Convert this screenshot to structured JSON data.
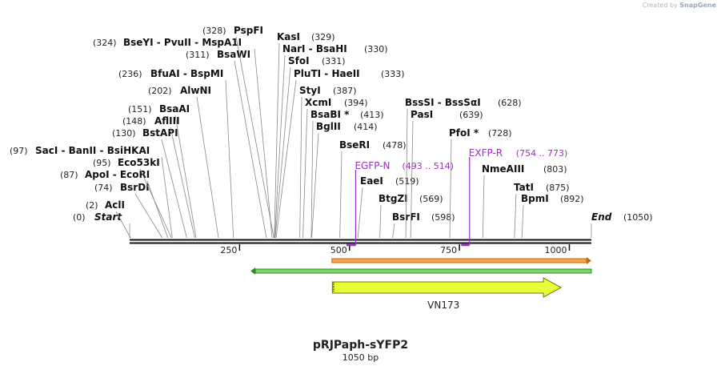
{
  "credit": {
    "prefix": "Created by",
    "brand": "SnapGene"
  },
  "plasmid": {
    "name": "pRJPaph-sYFP2",
    "size_label": "1050 bp",
    "length": 1050
  },
  "ruler_ticks": [
    {
      "pos": 250,
      "label": "250"
    },
    {
      "pos": 500,
      "label": "500"
    },
    {
      "pos": 750,
      "label": "750"
    },
    {
      "pos": 1000,
      "label": "1000"
    }
  ],
  "enzymes": [
    {
      "pos": 0,
      "pos_label": "(0)",
      "name": "Start",
      "italic": true
    },
    {
      "pos": 2,
      "pos_label": "(2)",
      "name": "AclI"
    },
    {
      "pos": 74,
      "pos_label": "(74)",
      "name": "BsrDI"
    },
    {
      "pos": 87,
      "pos_label": "(87)",
      "name": "ApoI - EcoRI"
    },
    {
      "pos": 95,
      "pos_label": "(95)",
      "name": "Eco53kI"
    },
    {
      "pos": 97,
      "pos_label": "(97)",
      "name": "SacI - BanII - BsiHKAI"
    },
    {
      "pos": 130,
      "pos_label": "(130)",
      "name": "BstAPI"
    },
    {
      "pos": 148,
      "pos_label": "(148)",
      "name": "AflIII"
    },
    {
      "pos": 151,
      "pos_label": "(151)",
      "name": "BsaAI"
    },
    {
      "pos": 202,
      "pos_label": "(202)",
      "name": "AlwNI"
    },
    {
      "pos": 236,
      "pos_label": "(236)",
      "name": "BfuAI - BspMI"
    },
    {
      "pos": 311,
      "pos_label": "(311)",
      "name": "BsaWI"
    },
    {
      "pos": 324,
      "pos_label": "(324)",
      "name": "BseYI - PvuII - MspA1I"
    },
    {
      "pos": 328,
      "pos_label": "(328)",
      "name": "PspFI"
    },
    {
      "pos": 329,
      "pos_label": "(329)",
      "name": "KasI"
    },
    {
      "pos": 330,
      "pos_label": "(330)",
      "name": "NarI - BsaHI"
    },
    {
      "pos": 331,
      "pos_label": "(331)",
      "name": "SfoI"
    },
    {
      "pos": 333,
      "pos_label": "(333)",
      "name": "PluTI - HaeII"
    },
    {
      "pos": 387,
      "pos_label": "(387)",
      "name": "StyI"
    },
    {
      "pos": 394,
      "pos_label": "(394)",
      "name": "XcmI"
    },
    {
      "pos": 413,
      "pos_label": "(413)",
      "name": "BsaBI *"
    },
    {
      "pos": 414,
      "pos_label": "(414)",
      "name": "BglII"
    },
    {
      "pos": 478,
      "pos_label": "(478)",
      "name": "BseRI"
    },
    {
      "pos": 519,
      "pos_label": "(519)",
      "name": "EaeI"
    },
    {
      "pos": 569,
      "pos_label": "(569)",
      "name": "BtgZI"
    },
    {
      "pos": 598,
      "pos_label": "(598)",
      "name": "BsrFI"
    },
    {
      "pos": 628,
      "pos_label": "(628)",
      "name": "BssSI - BssSαI"
    },
    {
      "pos": 639,
      "pos_label": "(639)",
      "name": "PasI"
    },
    {
      "pos": 728,
      "pos_label": "(728)",
      "name": "PfoI *"
    },
    {
      "pos": 803,
      "pos_label": "(803)",
      "name": "NmeAIII"
    },
    {
      "pos": 875,
      "pos_label": "(875)",
      "name": "TatI"
    },
    {
      "pos": 892,
      "pos_label": "(892)",
      "name": "BpmI"
    },
    {
      "pos": 1050,
      "pos_label": "(1050)",
      "name": "End",
      "italic": true
    }
  ],
  "primers": [
    {
      "name": "EGFP-N",
      "range": "(493 .. 514)",
      "start": 493,
      "end": 514,
      "color": "#9b30c8"
    },
    {
      "name": "EXFP-R",
      "range": "(754 .. 773)",
      "start": 754,
      "end": 773,
      "color": "#9b30c8"
    }
  ],
  "features": [
    {
      "name": "",
      "start": 460,
      "end": 1050,
      "direction": "forward",
      "fill": "#f7a34a",
      "stroke": "#c46a12"
    },
    {
      "name": "",
      "start": 275,
      "end": 1050,
      "direction": "reverse",
      "fill": "#7fd56a",
      "stroke": "#2f8a24"
    },
    {
      "name": "VN173",
      "start": 461,
      "end": 981,
      "direction": "forward",
      "fill": "#e8ff38",
      "stroke": "#6b7a10"
    }
  ]
}
